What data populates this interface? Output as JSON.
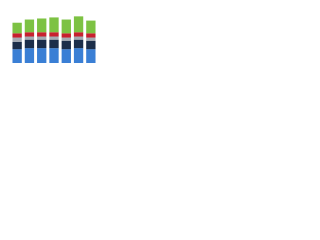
{
  "chart_data": {
    "type": "stacked_bar",
    "categories": [
      null,
      null,
      null,
      null,
      null,
      null,
      null
    ],
    "series": [
      {
        "color": "#3a7fd5",
        "values": [
          13,
          14,
          14,
          14,
          13,
          14,
          13
        ]
      },
      {
        "color": "#1c2e4a",
        "values": [
          7,
          8,
          8,
          8,
          8,
          8,
          8
        ]
      },
      {
        "color": "#a5aab3",
        "values": [
          4,
          3,
          3,
          3,
          3,
          3,
          3
        ]
      },
      {
        "color": "#c8202f",
        "values": [
          4,
          4,
          4,
          4,
          4,
          4,
          4
        ]
      },
      {
        "color": "#7dc243",
        "values": [
          10,
          12,
          13,
          14,
          13,
          15,
          12
        ]
      }
    ],
    "ylim": [
      0,
      50
    ]
  }
}
